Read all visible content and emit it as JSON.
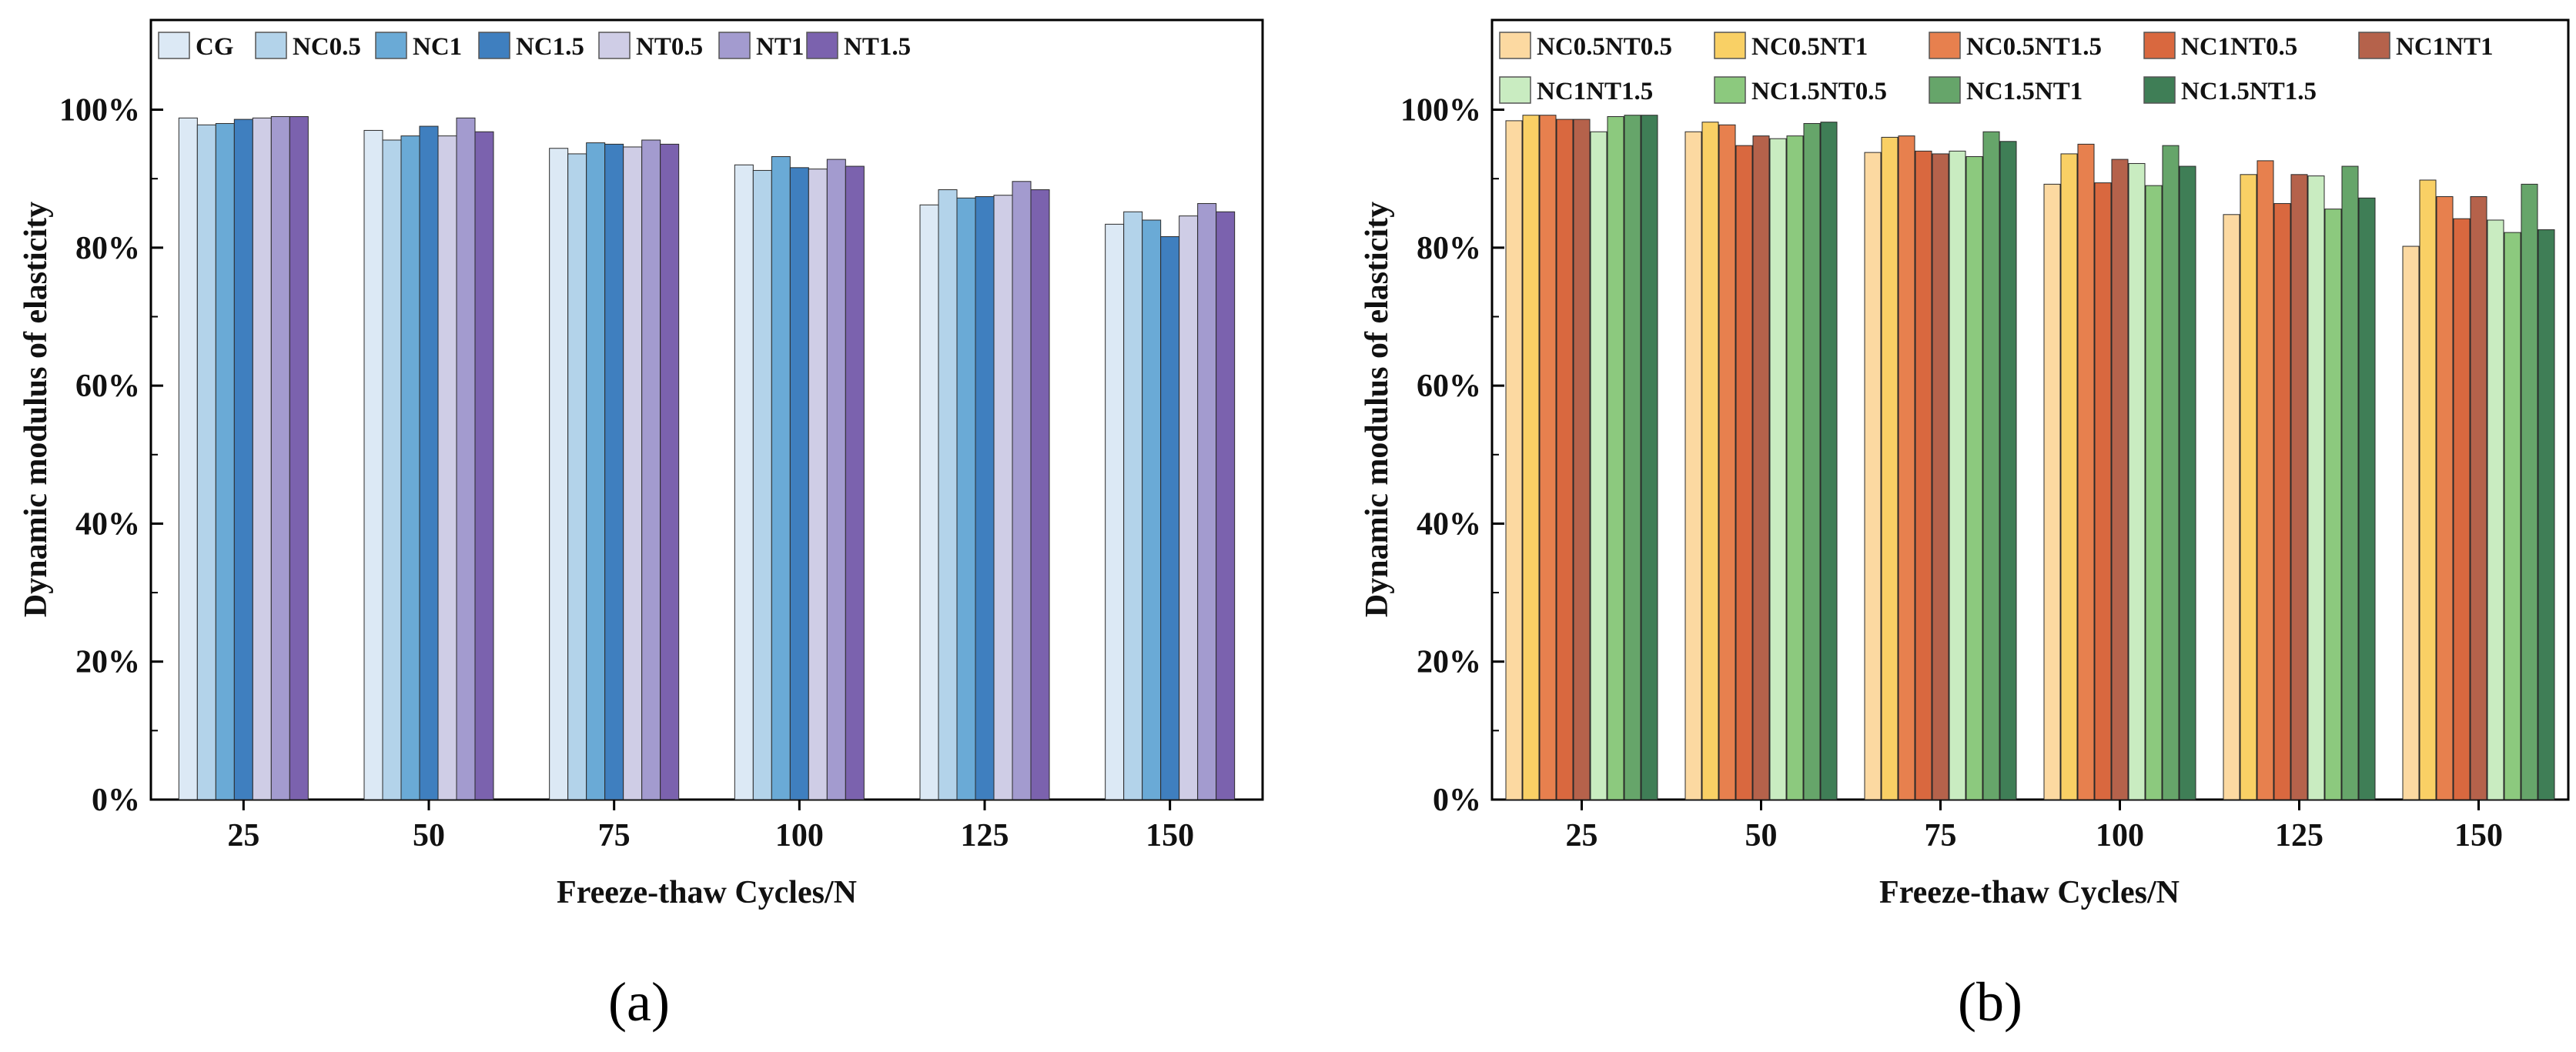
{
  "chart_data": [
    {
      "type": "bar",
      "panel_label": "(a)",
      "xlabel": "Freeze-thaw Cycles/N",
      "ylabel": "Dynamic modulus of elasticity",
      "categories": [
        "25",
        "50",
        "75",
        "100",
        "125",
        "150"
      ],
      "ylim": [
        0,
        113
      ],
      "yticks": [
        0,
        20,
        40,
        60,
        80,
        100
      ],
      "ytick_labels": [
        "0%",
        "20%",
        "40%",
        "60%",
        "80%",
        "100%"
      ],
      "y_unit": "%",
      "grid": false,
      "legend_position": "top",
      "series": [
        {
          "name": "CG",
          "color": "#dce9f5",
          "values": [
            98.8,
            97.0,
            94.4,
            92.0,
            86.2,
            83.4
          ]
        },
        {
          "name": "NC0.5",
          "color": "#b3d3ea",
          "values": [
            97.8,
            95.6,
            93.6,
            91.2,
            88.4,
            85.2
          ]
        },
        {
          "name": "NC1",
          "color": "#6aaad6",
          "values": [
            98.0,
            96.2,
            95.2,
            93.2,
            87.2,
            84.0
          ]
        },
        {
          "name": "NC1.5",
          "color": "#3f7fbf",
          "values": [
            98.6,
            97.6,
            95.0,
            91.6,
            87.4,
            81.6
          ]
        },
        {
          "name": "NT0.5",
          "color": "#cfcde6",
          "values": [
            98.8,
            96.2,
            94.6,
            91.4,
            87.6,
            84.6
          ]
        },
        {
          "name": "NT1",
          "color": "#a39bcf",
          "values": [
            99.0,
            98.8,
            95.6,
            92.8,
            89.6,
            86.4
          ]
        },
        {
          "name": "NT1.5",
          "color": "#7b62ae",
          "values": [
            99.0,
            96.8,
            95.0,
            91.8,
            88.4,
            85.2
          ]
        }
      ]
    },
    {
      "type": "bar",
      "panel_label": "(b)",
      "xlabel": "Freeze-thaw Cycles/N",
      "ylabel": "Dynamic modulus of elasticity",
      "categories": [
        "25",
        "50",
        "75",
        "100",
        "125",
        "150"
      ],
      "ylim": [
        0,
        113
      ],
      "yticks": [
        0,
        20,
        40,
        60,
        80,
        100
      ],
      "ytick_labels": [
        "0%",
        "20%",
        "40%",
        "60%",
        "80%",
        "100%"
      ],
      "y_unit": "%",
      "grid": false,
      "legend_position": "top",
      "series": [
        {
          "name": "NC0.5NT0.5",
          "color": "#fcd9a1",
          "values": [
            98.4,
            96.8,
            93.8,
            89.2,
            84.8,
            80.2
          ]
        },
        {
          "name": "NC0.5NT1",
          "color": "#f9d065",
          "values": [
            99.2,
            98.2,
            96.0,
            93.6,
            90.6,
            89.8
          ]
        },
        {
          "name": "NC0.5NT1.5",
          "color": "#e7804e",
          "values": [
            99.2,
            97.8,
            96.2,
            95.0,
            92.6,
            87.4
          ]
        },
        {
          "name": "NC1NT0.5",
          "color": "#d9683f",
          "values": [
            98.6,
            94.8,
            94.0,
            89.4,
            86.4,
            84.2
          ]
        },
        {
          "name": "NC1NT1",
          "color": "#b5624b",
          "values": [
            98.6,
            96.2,
            93.6,
            92.8,
            90.6,
            87.4
          ]
        },
        {
          "name": "NC1NT1.5",
          "color": "#c9ecc1",
          "values": [
            96.8,
            95.8,
            94.0,
            92.2,
            90.4,
            84.0
          ]
        },
        {
          "name": "NC1.5NT0.5",
          "color": "#8cc97e",
          "values": [
            99.0,
            96.2,
            93.2,
            89.0,
            85.6,
            82.2
          ]
        },
        {
          "name": "NC1.5NT1",
          "color": "#66a56a",
          "values": [
            99.2,
            98.0,
            96.8,
            94.8,
            91.8,
            89.2
          ]
        },
        {
          "name": "NC1.5NT1.5",
          "color": "#3f7e56",
          "values": [
            99.2,
            98.2,
            95.4,
            91.8,
            87.2,
            82.6
          ]
        }
      ]
    }
  ]
}
